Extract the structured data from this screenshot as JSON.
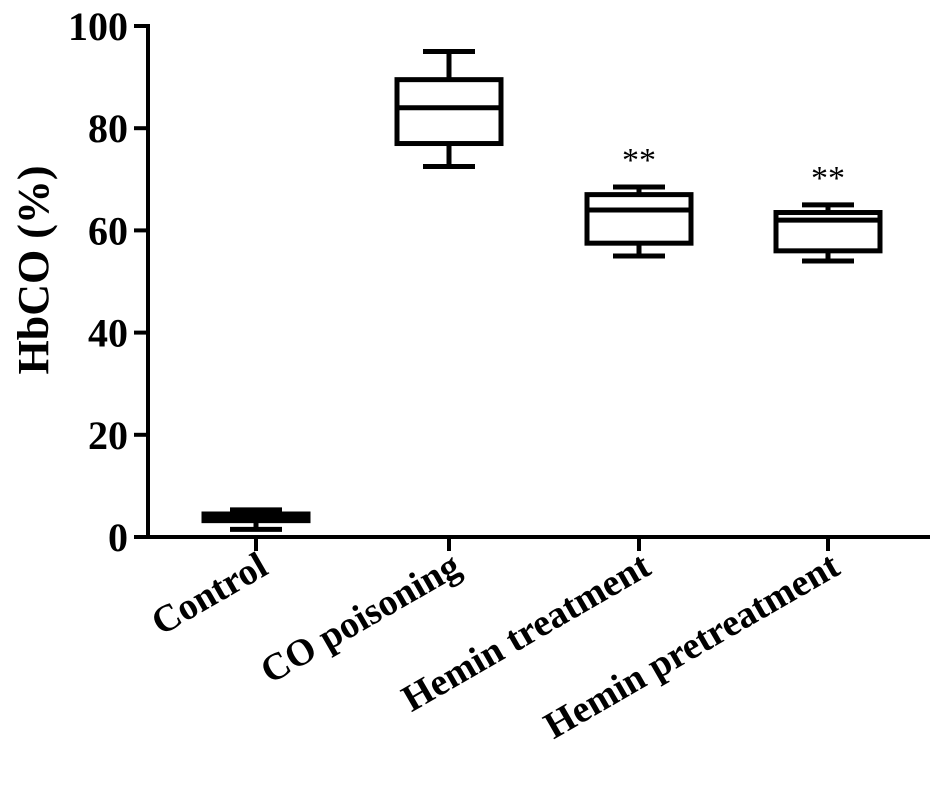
{
  "chart_data": {
    "type": "box",
    "ylabel": "HbCO (%)",
    "xlabel": "",
    "ylim": [
      0,
      100
    ],
    "yticks": [
      0,
      20,
      40,
      60,
      80,
      100
    ],
    "categories": [
      "Control",
      "CO poisoning",
      "Hemin treatment",
      "Hemin pretreatment"
    ],
    "boxes": [
      {
        "min": 1.5,
        "q1": 3.2,
        "median": 4.0,
        "q3": 4.5,
        "max": 5.3,
        "annotation": ""
      },
      {
        "min": 72.5,
        "q1": 77.0,
        "median": 84.0,
        "q3": 89.5,
        "max": 95.0,
        "annotation": ""
      },
      {
        "min": 55.0,
        "q1": 57.5,
        "median": 64.0,
        "q3": 67.0,
        "max": 68.5,
        "annotation": "**"
      },
      {
        "min": 54.0,
        "q1": 56.0,
        "median": 62.0,
        "q3": 63.5,
        "max": 65.0,
        "annotation": "**"
      }
    ],
    "grid": false,
    "legend": "none"
  }
}
